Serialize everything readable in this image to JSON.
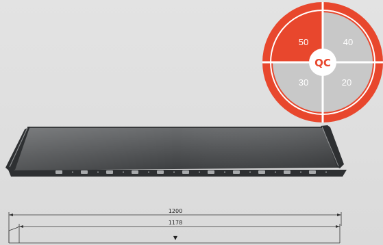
{
  "badge": {
    "center_label": "QC",
    "quadrants": {
      "top_left": "50",
      "top_right": "40",
      "bottom_left": "30",
      "bottom_right": "20"
    },
    "highlighted": "50",
    "colors": {
      "accent": "#e8472d",
      "inactive": "#c8c8c8",
      "outline": "#ffffff"
    }
  },
  "panel": {
    "colors": {
      "surface": "#505254",
      "edge": "#2e3032",
      "highlight": "#8a8c8e"
    },
    "fixing_slot_count": 11
  },
  "dimensions": {
    "overall_width": "1200",
    "cover_width": "1178",
    "marker_symbol": "▼"
  }
}
